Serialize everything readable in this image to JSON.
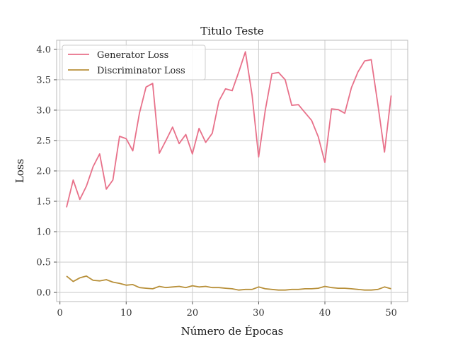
{
  "chart_data": {
    "type": "line",
    "title": "Titulo Teste",
    "xlabel": "Número de Épocas",
    "ylabel": "Loss",
    "xlim": [
      -0.5,
      52.5
    ],
    "ylim": [
      -0.15,
      4.15
    ],
    "xticks": [
      0,
      10,
      20,
      30,
      40,
      50
    ],
    "yticks": [
      0.0,
      0.5,
      1.0,
      1.5,
      2.0,
      2.5,
      3.0,
      3.5,
      4.0
    ],
    "ytick_labels": [
      "0.0",
      "0.5",
      "1.0",
      "1.5",
      "2.0",
      "2.5",
      "3.0",
      "3.5",
      "4.0"
    ],
    "grid": true,
    "legend_position": "top-left",
    "series": [
      {
        "name": "Generator Loss",
        "color": "#e8718a",
        "x": [
          1,
          2,
          3,
          4,
          5,
          6,
          7,
          8,
          9,
          10,
          11,
          12,
          13,
          14,
          15,
          16,
          17,
          18,
          19,
          20,
          21,
          22,
          23,
          24,
          25,
          26,
          27,
          28,
          29,
          30,
          31,
          32,
          33,
          34,
          35,
          36,
          37,
          38,
          39,
          40,
          41,
          42,
          43,
          44,
          45,
          46,
          47,
          48,
          49,
          50
        ],
        "values": [
          1.4,
          1.85,
          1.53,
          1.75,
          2.07,
          2.28,
          1.7,
          1.85,
          2.57,
          2.53,
          2.33,
          2.95,
          3.38,
          3.44,
          2.29,
          2.5,
          2.72,
          2.45,
          2.6,
          2.28,
          2.7,
          2.47,
          2.62,
          3.15,
          3.35,
          3.32,
          3.63,
          3.96,
          3.25,
          2.23,
          3.0,
          3.6,
          3.62,
          3.5,
          3.08,
          3.09,
          2.96,
          2.83,
          2.56,
          2.14,
          3.02,
          3.01,
          2.95,
          3.37,
          3.63,
          3.81,
          3.83,
          3.09,
          2.31,
          3.24
        ]
      },
      {
        "name": "Discriminator Loss",
        "color": "#b8903a",
        "x": [
          1,
          2,
          3,
          4,
          5,
          6,
          7,
          8,
          9,
          10,
          11,
          12,
          13,
          14,
          15,
          16,
          17,
          18,
          19,
          20,
          21,
          22,
          23,
          24,
          25,
          26,
          27,
          28,
          29,
          30,
          31,
          32,
          33,
          34,
          35,
          36,
          37,
          38,
          39,
          40,
          41,
          42,
          43,
          44,
          45,
          46,
          47,
          48,
          49,
          50
        ],
        "values": [
          0.27,
          0.18,
          0.24,
          0.27,
          0.2,
          0.19,
          0.21,
          0.17,
          0.15,
          0.12,
          0.13,
          0.08,
          0.07,
          0.06,
          0.1,
          0.08,
          0.09,
          0.1,
          0.08,
          0.11,
          0.09,
          0.1,
          0.08,
          0.08,
          0.07,
          0.06,
          0.04,
          0.05,
          0.05,
          0.09,
          0.06,
          0.05,
          0.04,
          0.04,
          0.05,
          0.05,
          0.06,
          0.06,
          0.07,
          0.1,
          0.08,
          0.07,
          0.07,
          0.06,
          0.05,
          0.04,
          0.04,
          0.05,
          0.09,
          0.06
        ]
      }
    ]
  }
}
